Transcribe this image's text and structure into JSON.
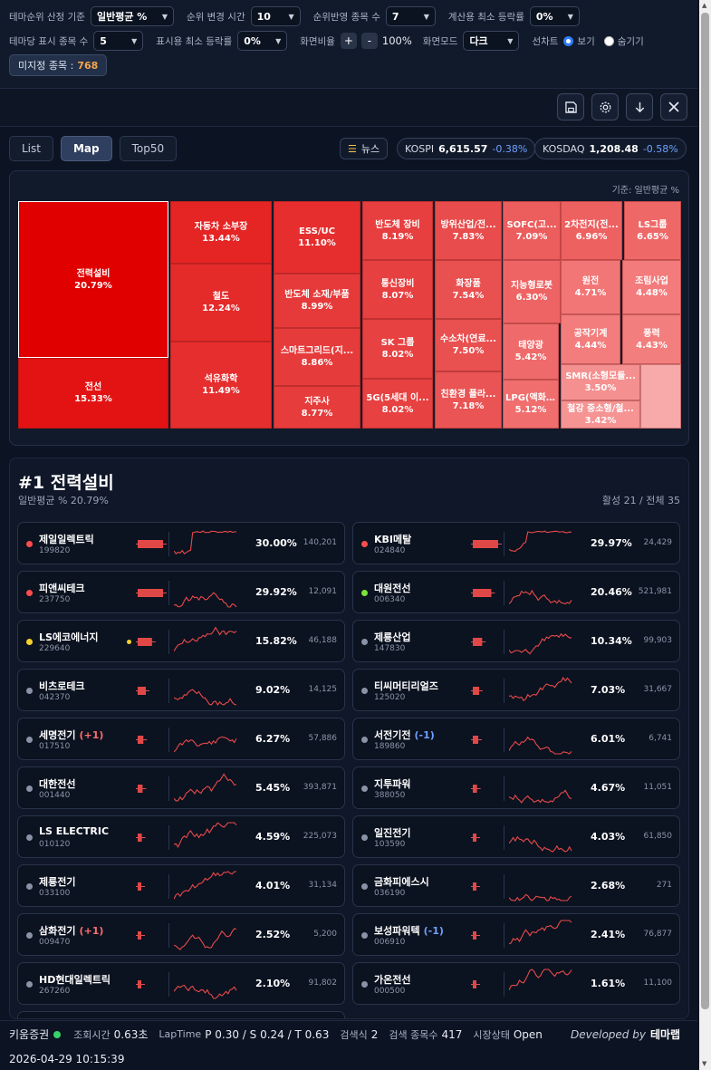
{
  "settings": {
    "rank_basis_label": "테마순위 산정 기준",
    "rank_basis_value": "일반평균 %",
    "rank_change_label": "순위 변경 시간",
    "rank_change_value": "10",
    "rank_count_label": "순위반영 종목 수",
    "rank_count_value": "7",
    "min_rate_label": "계산용 최소 등락률",
    "min_rate_value": "0%",
    "theme_count_label": "테마당 표시 종목 수",
    "theme_count_value": "5",
    "display_min_label": "표시용 최소 등락률",
    "display_min_value": "0%",
    "ratio_label": "화면비율",
    "ratio_plus": "+",
    "ratio_minus": "-",
    "ratio_value": "100%",
    "mode_label": "화면모드",
    "mode_value": "다크",
    "chart_label": "선차트",
    "show_label": "보기",
    "hide_label": "숨기기",
    "unassigned_label": "미지정 종목 :",
    "unassigned_count": "768"
  },
  "tabs": [
    "List",
    "Map",
    "Top50"
  ],
  "market": {
    "news_label": "뉴스",
    "kospi_label": "KOSPI",
    "kospi_value": "6,615.57",
    "kospi_change": "-0.38%",
    "kosdaq_label": "KOSDAQ",
    "kosdaq_value": "1,208.48",
    "kosdaq_change": "-0.58%"
  },
  "map": {
    "caption": "기준: 일반평균 %",
    "cells": [
      {
        "name": "전력설비",
        "pct": "20.79%",
        "color": "#e00000"
      },
      {
        "name": "전선",
        "pct": "15.33%",
        "color": "#e31313"
      },
      {
        "name": "자동차 소부장",
        "pct": "13.44%",
        "color": "#e52424"
      },
      {
        "name": "철도",
        "pct": "12.24%",
        "color": "#e52a2a"
      },
      {
        "name": "석유화학",
        "pct": "11.49%",
        "color": "#e62e2e"
      },
      {
        "name": "ESS/UC",
        "pct": "11.10%",
        "color": "#e62e2e"
      },
      {
        "name": "반도체 소재/부품",
        "pct": "8.99%",
        "color": "#e63a3a"
      },
      {
        "name": "스마트그리드(지...",
        "pct": "8.86%",
        "color": "#e63b3b"
      },
      {
        "name": "지주사",
        "pct": "8.77%",
        "color": "#e63c3c"
      },
      {
        "name": "반도체 장비",
        "pct": "8.19%",
        "color": "#e73f3f"
      },
      {
        "name": "통신장비",
        "pct": "8.07%",
        "color": "#e74040"
      },
      {
        "name": "SK 그룹",
        "pct": "8.02%",
        "color": "#e74141"
      },
      {
        "name": "5G(5세대 이...",
        "pct": "8.02%",
        "color": "#e74141"
      },
      {
        "name": "방위산업/전...",
        "pct": "7.83%",
        "color": "#e84c4c"
      },
      {
        "name": "화장품",
        "pct": "7.54%",
        "color": "#e95050"
      },
      {
        "name": "수소차(연료...",
        "pct": "7.50%",
        "color": "#e95050"
      },
      {
        "name": "친환경 플라...",
        "pct": "7.18%",
        "color": "#ea5454"
      },
      {
        "name": "SOFC(고...",
        "pct": "7.09%",
        "color": "#ec5d5d"
      },
      {
        "name": "지능형로봇",
        "pct": "6.30%",
        "color": "#ee6464"
      },
      {
        "name": "태양광",
        "pct": "5.42%",
        "color": "#ef6a6a"
      },
      {
        "name": "LPG(액화...",
        "pct": "5.12%",
        "color": "#f06e6e"
      },
      {
        "name": "2차전지(전...",
        "pct": "6.96%",
        "color": "#ee6161"
      },
      {
        "name": "LS그룹",
        "pct": "6.65%",
        "color": "#ef6868"
      },
      {
        "name": "원전",
        "pct": "4.71%",
        "color": "#f27676"
      },
      {
        "name": "조림사업",
        "pct": "4.48%",
        "color": "#f37b7b"
      },
      {
        "name": "공작기계",
        "pct": "4.44%",
        "color": "#f37d7d"
      },
      {
        "name": "풍력",
        "pct": "4.43%",
        "color": "#f37e7e"
      },
      {
        "name": "SMR(소형모듈...",
        "pct": "3.50%",
        "color": "#f59090"
      },
      {
        "name": "철강 중소형/철...",
        "pct": "3.42%",
        "color": "#f69393"
      },
      {
        "name": "",
        "pct": "",
        "color": "#f8aaaa"
      }
    ]
  },
  "detail": {
    "title": "#1 전력설비",
    "subtitle": "일반평균 % 20.79%",
    "stats": "활성 21 / 전체 35",
    "stocks": [
      {
        "name": "제일일렉트릭",
        "code": "199820",
        "change": "",
        "pct": "30.00%",
        "volume": "140,201",
        "dot": "#ff4d4d"
      },
      {
        "name": "KBI메탈",
        "code": "024840",
        "change": "",
        "pct": "29.97%",
        "volume": "24,429",
        "dot": "#ff4d4d"
      },
      {
        "name": "피앤씨테크",
        "code": "237750",
        "change": "",
        "pct": "29.92%",
        "volume": "12,091",
        "dot": "#ff4d4d"
      },
      {
        "name": "대원전선",
        "code": "006340",
        "change": "",
        "pct": "20.46%",
        "volume": "521,981",
        "dot": "#7be33a"
      },
      {
        "name": "LS에코에너지",
        "code": "229640",
        "change": "",
        "pct": "15.82%",
        "volume": "46,188",
        "dot": "#f5d22a"
      },
      {
        "name": "제룡산업",
        "code": "147830",
        "change": "",
        "pct": "10.34%",
        "volume": "99,903",
        "dot": "#8a93a6"
      },
      {
        "name": "비츠로테크",
        "code": "042370",
        "change": "",
        "pct": "9.02%",
        "volume": "14,125",
        "dot": "#8a93a6"
      },
      {
        "name": "티씨머티리얼즈",
        "code": "125020",
        "change": "",
        "pct": "7.03%",
        "volume": "31,667",
        "dot": "#8a93a6"
      },
      {
        "name": "세명전기",
        "code": "017510",
        "change": "(+1)",
        "pct": "6.27%",
        "volume": "57,886",
        "dot": "#8a93a6"
      },
      {
        "name": "서전기전",
        "code": "189860",
        "change": "(-1)",
        "pct": "6.01%",
        "volume": "6,741",
        "dot": "#8a93a6"
      },
      {
        "name": "대한전선",
        "code": "001440",
        "change": "",
        "pct": "5.45%",
        "volume": "393,871",
        "dot": "#8a93a6"
      },
      {
        "name": "지투파워",
        "code": "388050",
        "change": "",
        "pct": "4.67%",
        "volume": "11,051",
        "dot": "#8a93a6"
      },
      {
        "name": "LS ELECTRIC",
        "code": "010120",
        "change": "",
        "pct": "4.59%",
        "volume": "225,073",
        "dot": "#8a93a6"
      },
      {
        "name": "일진전기",
        "code": "103590",
        "change": "",
        "pct": "4.03%",
        "volume": "61,850",
        "dot": "#8a93a6"
      },
      {
        "name": "제룡전기",
        "code": "033100",
        "change": "",
        "pct": "4.01%",
        "volume": "31,134",
        "dot": "#8a93a6"
      },
      {
        "name": "금화피에스시",
        "code": "036190",
        "change": "",
        "pct": "2.68%",
        "volume": "271",
        "dot": "#8a93a6"
      },
      {
        "name": "삼화전기",
        "code": "009470",
        "change": "(+1)",
        "pct": "2.52%",
        "volume": "5,200",
        "dot": "#8a93a6"
      },
      {
        "name": "보성파워텍",
        "code": "006910",
        "change": "(-1)",
        "pct": "2.41%",
        "volume": "76,877",
        "dot": "#8a93a6"
      },
      {
        "name": "HD현대일렉트릭",
        "code": "267260",
        "change": "",
        "pct": "2.10%",
        "volume": "91,802",
        "dot": "#8a93a6"
      },
      {
        "name": "가온전선",
        "code": "000500",
        "change": "",
        "pct": "1.61%",
        "volume": "11,100",
        "dot": "#8a93a6"
      }
    ]
  },
  "footer": {
    "broker": "키움증권",
    "query_label": "조회시간",
    "query_value": "0.63초",
    "lap_label": "LapTime",
    "lap_value": "P 0.30 / S 0.24 / T 0.63",
    "search_label": "검색식",
    "search_value": "2",
    "count_label": "검색 종목수",
    "count_value": "417",
    "market_label": "시장상태",
    "market_value": "Open",
    "dev_label": "Developed by",
    "dev_value": "테마랩",
    "datetime": "2026-04-29 10:15:39"
  },
  "colors": {
    "accent": "#2e7dff",
    "up": "#e03a3a",
    "down": "#6ea0ff",
    "gold": "#f3a64b"
  }
}
